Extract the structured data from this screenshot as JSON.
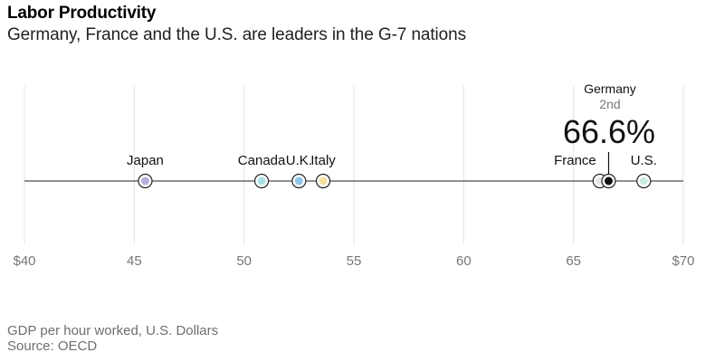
{
  "header": {
    "title": "Labor Productivity",
    "subtitle": "Germany, France and the U.S. are leaders in the G-7 nations"
  },
  "footer": {
    "note": "GDP per hour worked, U.S. Dollars",
    "source": "Source: OECD"
  },
  "highlight": {
    "country": "Germany",
    "rank": "2nd",
    "value_label": "66.6%"
  },
  "chart_data": {
    "type": "scatter",
    "title": "Labor Productivity",
    "subtitle": "Germany, France and the U.S. are leaders in the G-7 nations",
    "xlabel": "GDP per hour worked, U.S. Dollars",
    "ylabel": "",
    "xlim": [
      40,
      70
    ],
    "x_ticks": [
      {
        "value": 40,
        "label": "$40"
      },
      {
        "value": 45,
        "label": "45"
      },
      {
        "value": 50,
        "label": "50"
      },
      {
        "value": 55,
        "label": "55"
      },
      {
        "value": 60,
        "label": "60"
      },
      {
        "value": 65,
        "label": "65"
      },
      {
        "value": 70,
        "label": "$70"
      }
    ],
    "grid": true,
    "points": [
      {
        "name": "Japan",
        "value": 45.5,
        "color": "#b9addb",
        "label_position": "above"
      },
      {
        "name": "Canada",
        "value": 50.8,
        "color": "#a9e1e6",
        "label_position": "above"
      },
      {
        "name": "U.K.",
        "value": 52.5,
        "color": "#8fc4ea",
        "label_position": "above"
      },
      {
        "name": "Italy",
        "value": 53.6,
        "color": "#f7e0a0",
        "label_position": "above"
      },
      {
        "name": "France",
        "value": 66.2,
        "color": "#e6e6e6",
        "label_position": "left"
      },
      {
        "name": "Germany",
        "value": 66.6,
        "color": "#111111",
        "label_position": "callout",
        "highlight": true
      },
      {
        "name": "U.S.",
        "value": 68.2,
        "color": "#c8ebe1",
        "label_position": "above"
      }
    ]
  }
}
